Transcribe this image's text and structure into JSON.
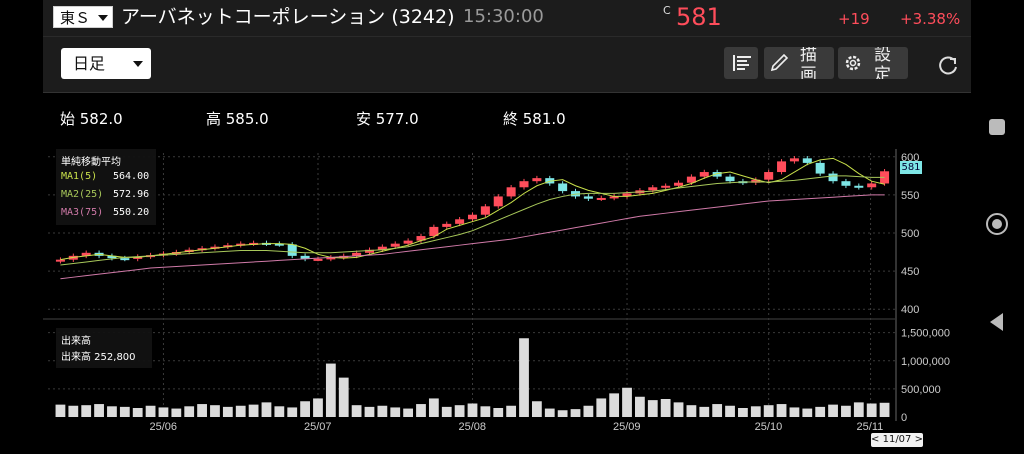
{
  "header": {
    "market": "東Ｓ",
    "company": "アーバネットコーポレーション (3242)",
    "time": "15:30:00",
    "c_mark": "C",
    "price": "581",
    "change": "+19",
    "change_pct": "+3.38%",
    "up_color": "#ff4d5b"
  },
  "toolbar": {
    "period": "日足",
    "draw_label": "描画",
    "settings_label": "設定",
    "icons": [
      "indicator-list-icon",
      "pencil-icon",
      "gear-icon",
      "refresh-icon"
    ]
  },
  "ohlc": {
    "open": "始 582.0",
    "high": "高 585.0",
    "low": "安 577.0",
    "close": "終 581.0"
  },
  "legend": {
    "title": "単純移動平均",
    "ma1_label": "MA1(5)",
    "ma1_value": "564.00",
    "ma2_label": "MA2(25)",
    "ma2_value": "572.96",
    "ma3_label": "MA3(75)",
    "ma3_value": "550.20",
    "ma1_color": "#c8e04a",
    "ma2_color": "#a8c85a",
    "ma3_color": "#d07aa8"
  },
  "volume_legend": {
    "title": "出来高",
    "value": "出来高  252,800"
  },
  "current_price_tag": "581",
  "selected_date": "< 11/07 >",
  "chart_data": [
    {
      "type": "candlestick",
      "title": "",
      "x_ticks": [
        "25/06",
        "25/07",
        "25/08",
        "25/09",
        "25/10",
        "25/11"
      ],
      "y_ticks": [
        400,
        450,
        500,
        550,
        600
      ],
      "ylim": [
        395,
        605
      ],
      "colors": {
        "up": "#ff4d5b",
        "down": "#7ee6e6"
      },
      "series": [
        {
          "name": "MA1(5)",
          "color": "#c8e04a",
          "values": [
            465,
            468,
            470,
            472,
            470,
            468,
            468,
            470,
            472,
            474,
            476,
            478,
            480,
            482,
            484,
            485,
            486,
            486,
            485,
            480,
            472,
            468,
            467,
            468,
            472,
            476,
            480,
            484,
            490,
            495,
            505,
            510,
            515,
            520,
            530,
            540,
            552,
            562,
            568,
            570,
            562,
            556,
            552,
            548,
            548,
            550,
            552,
            556,
            560,
            565,
            572,
            578,
            580,
            575,
            570,
            566,
            570,
            580,
            590,
            596,
            598,
            590,
            578,
            568,
            564
          ]
        },
        {
          "name": "MA2(25)",
          "color": "#a8c85a",
          "values": [
            458,
            460,
            462,
            464,
            466,
            468,
            469,
            470,
            471,
            472,
            473,
            474,
            475,
            476,
            477,
            477,
            477,
            476,
            475,
            474,
            474,
            474,
            475,
            476,
            477,
            478,
            480,
            482,
            486,
            490,
            494,
            498,
            503,
            510,
            517,
            524,
            531,
            538,
            544,
            548,
            551,
            552,
            552,
            552,
            553,
            554,
            555,
            557,
            559,
            561,
            563,
            565,
            566,
            567,
            567,
            567,
            568,
            569,
            571,
            573,
            575,
            575,
            574,
            573,
            573
          ]
        },
        {
          "name": "MA3(75)",
          "color": "#d07aa8",
          "values": [
            440,
            442,
            444,
            446,
            448,
            450,
            452,
            454,
            455,
            456,
            457,
            458,
            459,
            460,
            461,
            462,
            463,
            464,
            465,
            466,
            467,
            468,
            469,
            470,
            471,
            472,
            474,
            476,
            478,
            480,
            482,
            484,
            486,
            488,
            490,
            492,
            495,
            498,
            501,
            504,
            507,
            510,
            513,
            516,
            519,
            522,
            524,
            526,
            528,
            530,
            532,
            534,
            536,
            538,
            540,
            542,
            543,
            544,
            545,
            546,
            547,
            548,
            549,
            550,
            550
          ]
        }
      ],
      "candles_close": [
        465,
        470,
        474,
        470,
        467,
        466,
        469,
        471,
        473,
        475,
        478,
        480,
        482,
        484,
        486,
        487,
        486,
        485,
        470,
        466,
        466,
        468,
        470,
        474,
        478,
        482,
        486,
        490,
        496,
        508,
        512,
        518,
        524,
        535,
        548,
        560,
        568,
        572,
        565,
        555,
        548,
        545,
        546,
        548,
        552,
        556,
        560,
        562,
        566,
        574,
        580,
        574,
        568,
        566,
        570,
        580,
        594,
        598,
        592,
        578,
        568,
        562,
        560,
        565,
        581
      ]
    },
    {
      "type": "bar",
      "title": "出来高",
      "x_ticks": [
        "25/06",
        "25/07",
        "25/08",
        "25/09",
        "25/10",
        "25/11"
      ],
      "y_ticks": [
        0,
        500000,
        1000000,
        1500000
      ],
      "y_tick_labels": [
        "0",
        "500,000",
        "1,000,000",
        "1,500,000"
      ],
      "ylim": [
        0,
        1600000
      ],
      "values": [
        220000,
        200000,
        210000,
        230000,
        190000,
        180000,
        160000,
        200000,
        170000,
        150000,
        190000,
        230000,
        210000,
        180000,
        200000,
        220000,
        260000,
        190000,
        170000,
        280000,
        330000,
        950000,
        700000,
        210000,
        180000,
        200000,
        170000,
        150000,
        230000,
        330000,
        180000,
        210000,
        240000,
        190000,
        160000,
        200000,
        1400000,
        280000,
        150000,
        120000,
        140000,
        200000,
        330000,
        420000,
        520000,
        360000,
        300000,
        320000,
        260000,
        210000,
        180000,
        230000,
        200000,
        160000,
        190000,
        210000,
        230000,
        170000,
        150000,
        180000,
        220000,
        200000,
        260000,
        240000,
        252800
      ]
    }
  ]
}
